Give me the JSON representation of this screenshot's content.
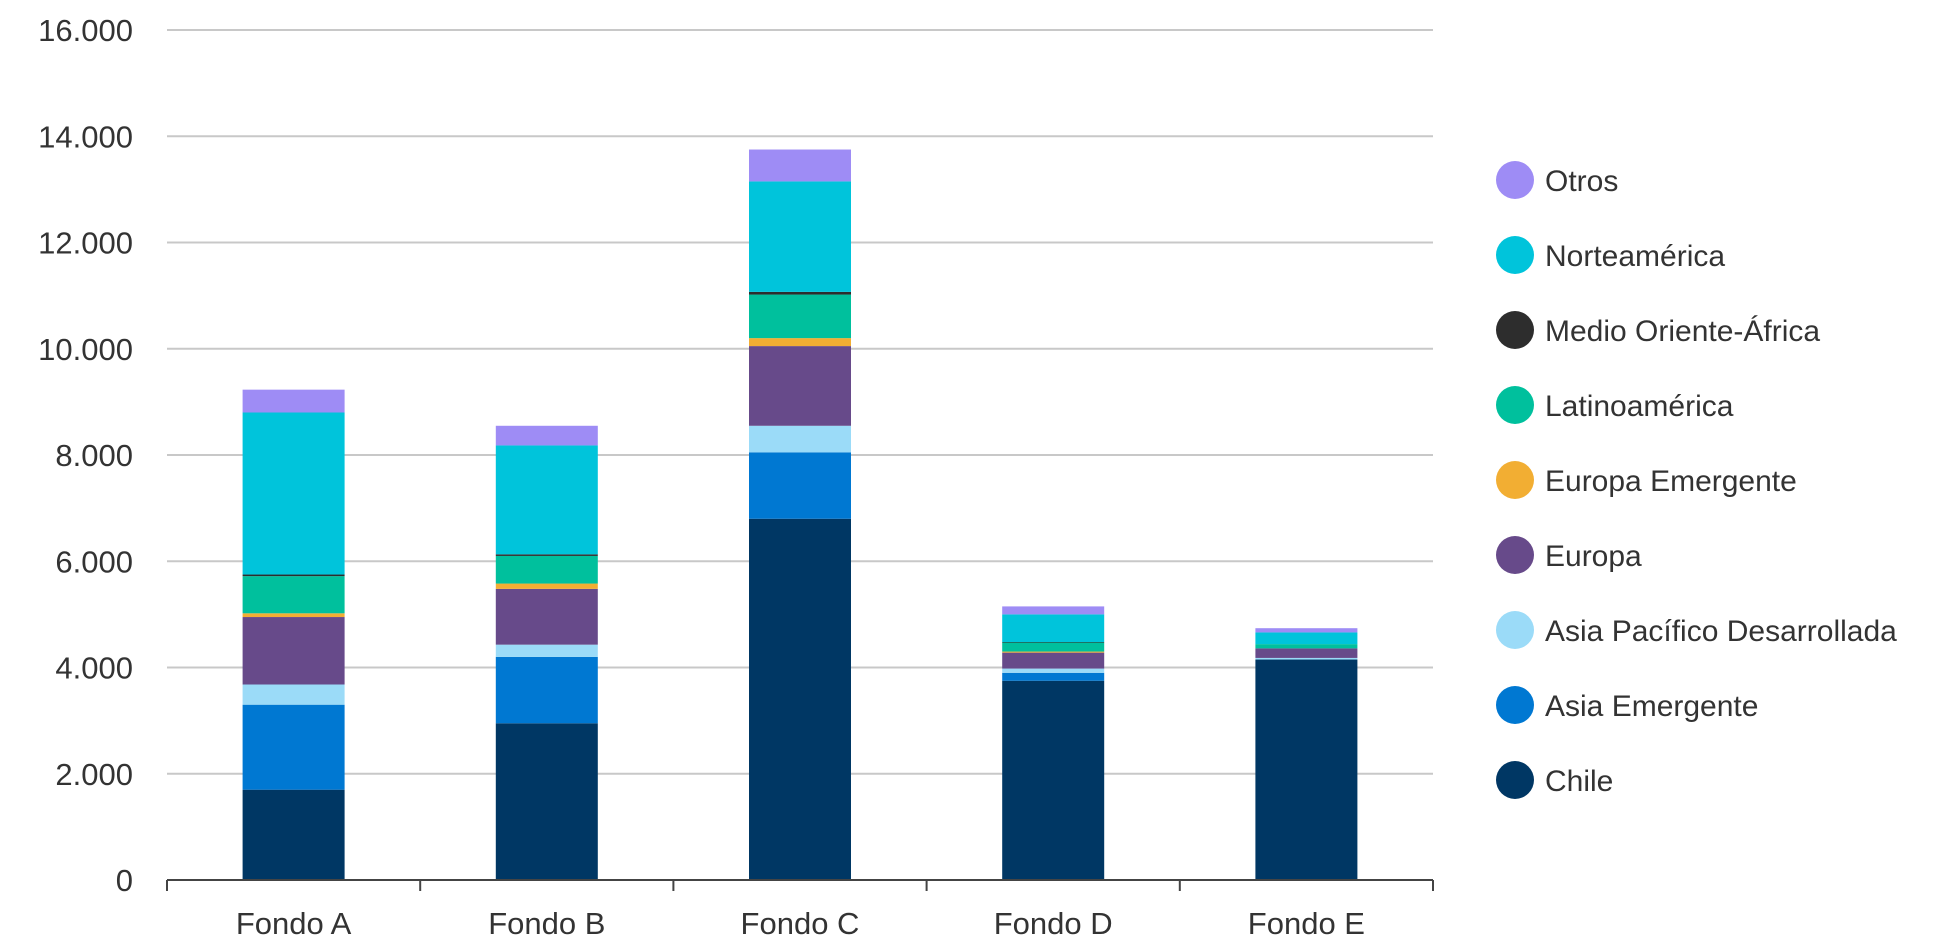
{
  "chart_data": {
    "type": "bar",
    "stacked": true,
    "title": "",
    "xlabel": "",
    "ylabel": "",
    "ylim": [
      0,
      16000
    ],
    "yticks": [
      "0",
      "2.000",
      "4.000",
      "6.000",
      "8.000",
      "10.000",
      "12.000",
      "14.000",
      "16.000"
    ],
    "ytick_values": [
      0,
      2000,
      4000,
      6000,
      8000,
      10000,
      12000,
      14000,
      16000
    ],
    "grid": true,
    "legend_position": "right",
    "categories": [
      "Fondo A",
      "Fondo B",
      "Fondo C",
      "Fondo D",
      "Fondo E"
    ],
    "series": [
      {
        "name": "Chile",
        "color": "#003764",
        "values": [
          1700,
          2950,
          6800,
          3750,
          4150
        ]
      },
      {
        "name": "Asia Emergente",
        "color": "#0078d2",
        "values": [
          1600,
          1250,
          1250,
          150,
          0
        ]
      },
      {
        "name": "Asia Pacífico Desarrollada",
        "color": "#9bdbf8",
        "values": [
          380,
          230,
          500,
          80,
          30
        ]
      },
      {
        "name": "Europa",
        "color": "#674a8a",
        "values": [
          1270,
          1050,
          1500,
          300,
          180
        ]
      },
      {
        "name": "Europa Emergente",
        "color": "#f2ae33",
        "values": [
          70,
          100,
          150,
          20,
          0
        ]
      },
      {
        "name": "Latinoamérica",
        "color": "#00c09d",
        "values": [
          700,
          520,
          820,
          170,
          80
        ]
      },
      {
        "name": "Medio Oriente-África",
        "color": "#2d2d2d",
        "values": [
          30,
          30,
          50,
          10,
          0
        ]
      },
      {
        "name": "Norteamérica",
        "color": "#00c4db",
        "values": [
          3050,
          2050,
          2080,
          520,
          220
        ]
      },
      {
        "name": "Otros",
        "color": "#9e8cf5",
        "values": [
          430,
          370,
          600,
          150,
          80
        ]
      }
    ]
  }
}
